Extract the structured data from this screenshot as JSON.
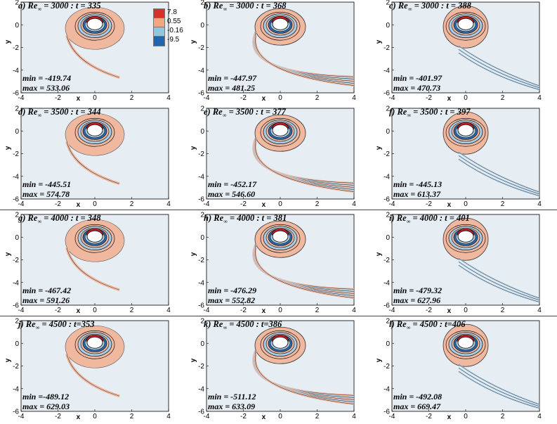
{
  "figure": {
    "axis_labels": {
      "x": "x",
      "y": "y"
    },
    "x_ticks": [
      "-4",
      "-2",
      "0",
      "2",
      "4"
    ],
    "y_ticks": [
      "2",
      "0",
      "-2",
      "-4",
      "-6"
    ],
    "legend": {
      "entries": [
        {
          "label": "7.8",
          "color": "#d73027"
        },
        {
          "label": "0.55",
          "color": "#f4a582"
        },
        {
          "label": "-0.16",
          "color": "#92c5de"
        },
        {
          "label": "-9.5",
          "color": "#2166ac"
        }
      ]
    },
    "colors": {
      "background": "#e6edf3",
      "positive": "#f1b8a0",
      "positive_strong": "#c8202a",
      "negative": "#a9cbe4",
      "negative_strong": "#2c6bb0",
      "cylinder": "#ffffff"
    },
    "panels": [
      {
        "id": "a",
        "prefix": "a)",
        "re": "3000",
        "sep": " : t = ",
        "t": "335",
        "min": "min = -419.74",
        "max": "max = 533.06"
      },
      {
        "id": "b",
        "prefix": "b)",
        "re": "3000",
        "sep": " : t = ",
        "t": "368",
        "min": "min = -447.97",
        "max": "max = 481.25"
      },
      {
        "id": "c",
        "prefix": "c)",
        "re": "3000",
        "sep": " : t = ",
        "t": "388",
        "min": "min = -401.97",
        "max": "max = 470.73"
      },
      {
        "id": "d",
        "prefix": "d)",
        "re": "3500",
        "sep": " : t = ",
        "t": "344",
        "min": "min = -445.51",
        "max": "max = 574.78"
      },
      {
        "id": "e",
        "prefix": "e)",
        "re": "3500",
        "sep": " : t = ",
        "t": "377",
        "min": "min = -452.17",
        "max": "max = 546.60"
      },
      {
        "id": "f",
        "prefix": "f)",
        "re": "3500",
        "sep": " : t = ",
        "t": "397",
        "min": "min = -445.13",
        "max": "max = 613.37"
      },
      {
        "id": "g",
        "prefix": "g)",
        "re": "4000",
        "sep": " : t = ",
        "t": "348",
        "min": "min = -467.42",
        "max": "max = 591.26"
      },
      {
        "id": "h",
        "prefix": "h)",
        "re": "4000",
        "sep": " : t = ",
        "t": "381",
        "min": "min = -476.29",
        "max": "max = 552.82"
      },
      {
        "id": "i",
        "prefix": "i)",
        "re": "4000",
        "sep": " : t = ",
        "t": "401",
        "min": "min = -479.32",
        "max": "max = 627.96"
      },
      {
        "id": "j",
        "prefix": "j)",
        "re": "4500",
        "sep": " : t=",
        "t": "353",
        "min": "min =-489.12",
        "max": "max = 629.03"
      },
      {
        "id": "k",
        "prefix": "k)",
        "re": "4500",
        "sep": " : t=",
        "t": "386",
        "min": "min = -511.12",
        "max": "max = 633.09"
      },
      {
        "id": "l",
        "prefix": "l)",
        "re": "4500",
        "sep": " : t=",
        "t": "406",
        "min": "min = -492.08",
        "max": "max = 669.47"
      }
    ]
  }
}
